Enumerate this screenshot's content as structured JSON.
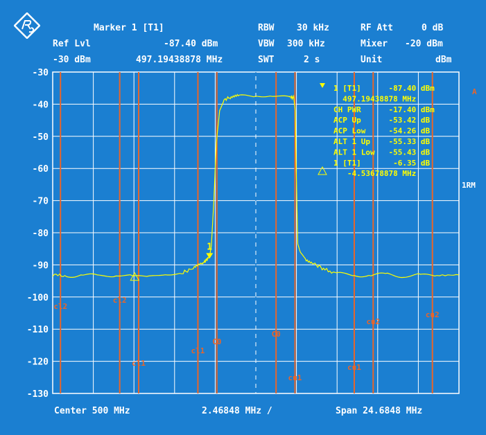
{
  "header": {
    "marker_title": "Marker 1 [T1]",
    "ref_lvl_label": "Ref Lvl",
    "marker_level": "-87.40 dBm",
    "ref_lvl_value": "-30 dBm",
    "marker_freq": "497.19438878 MHz",
    "rbw_label": "RBW",
    "rbw_value": "30 kHz",
    "vbw_label": "VBW",
    "vbw_value": "300 kHz",
    "swt_label": "SWT",
    "swt_value": "2 s",
    "rf_att_label": "RF Att",
    "rf_att_value": "0 dB",
    "mixer_label": "Mixer",
    "mixer_value": "-20 dBm",
    "unit_label": "Unit",
    "unit_value": "dBm"
  },
  "side": {
    "trace_a": "A",
    "mode": "1RM"
  },
  "footer": {
    "center": "Center 500 MHz",
    "div": "2.46848 MHz /",
    "span": "Span 24.6848 MHz"
  },
  "readout": [
    "1 [T1]      -87.40 dBm",
    "  497.19438878 MHz",
    "CH PWR      -17.40 dBm",
    "ACP Up      -53.42 dB",
    "ACP Low     -54.26 dB",
    "ALT 1 Up    -55.33 dB",
    "ALT 1 Low   -55.43 dB",
    "1 [T1]       -6.35 dB",
    "   -4.53678878 MHz"
  ],
  "colors": {
    "background": "#1b7fd1",
    "grid": "#ffffff",
    "trace": "#ffff00",
    "channel_lines": "#e8652a"
  },
  "chart_data": {
    "type": "line",
    "title": "Marker 1 [T1]",
    "xlabel": "",
    "ylabel": "",
    "x_unit": "MHz",
    "y_unit": "dBm",
    "xlim": [
      487.6576,
      512.3424
    ],
    "ylim": [
      -130,
      -30
    ],
    "yticks": [
      "-30",
      "-40",
      "-50",
      "-60",
      "-70",
      "-80",
      "-90",
      "-100",
      "-110",
      "-120",
      "-130"
    ],
    "grid": true,
    "series": [
      {
        "x": [
          487.66,
          488.5,
          489.5,
          490.5,
          491.5,
          492.5,
          493.5,
          494.5,
          495.5,
          496.2,
          496.7,
          497.0,
          497.19,
          497.3,
          497.45,
          497.6,
          497.8,
          498.1,
          498.5,
          499.0,
          500.0,
          501.0,
          502.0,
          502.3,
          502.4,
          502.45,
          502.55,
          502.7,
          503.0,
          503.5,
          504.2,
          505.0,
          506.0,
          507.0,
          508.0,
          509.0,
          510.0,
          511.0,
          512.34
        ],
        "y": [
          -93.2,
          -93.4,
          -93.1,
          -93.5,
          -93.2,
          -93.4,
          -93.6,
          -93.0,
          -92.6,
          -91.0,
          -89.8,
          -88.5,
          -87.4,
          -84.0,
          -70.0,
          -52.0,
          -42.0,
          -38.5,
          -37.8,
          -37.5,
          -37.4,
          -37.5,
          -37.6,
          -38.0,
          -42.0,
          -60.0,
          -83.5,
          -86.0,
          -88.0,
          -89.5,
          -91.5,
          -92.8,
          -93.1,
          -93.3,
          -93.0,
          -93.4,
          -93.2,
          -93.3,
          -93.1
        ]
      }
    ],
    "markers": [
      {
        "label": "1",
        "x": 497.19,
        "y": -87.4,
        "type": "normal"
      },
      {
        "label": "",
        "x": 492.64,
        "y": -93.75,
        "type": "delta"
      }
    ],
    "channel_lines": [
      {
        "label": "cl2",
        "x": 488.13
      },
      {
        "label": "cl2",
        "x": 491.73
      },
      {
        "label": "cl1",
        "x": 492.88
      },
      {
        "label": "cl1",
        "x": 496.48
      },
      {
        "label": "C0",
        "x": 497.63
      },
      {
        "label": "C0",
        "x": 501.23
      },
      {
        "label": "cu1",
        "x": 502.38
      },
      {
        "label": "cu1",
        "x": 505.98
      },
      {
        "label": "cu2",
        "x": 507.13
      },
      {
        "label": "cu2",
        "x": 510.73
      }
    ]
  }
}
